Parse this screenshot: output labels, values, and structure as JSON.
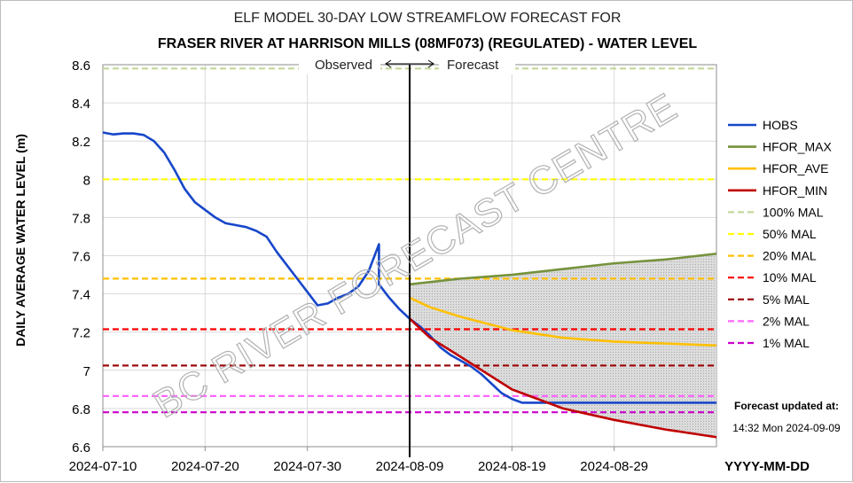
{
  "chart_data": {
    "type": "line",
    "title": "ELF MODEL 30-DAY LOW STREAMFLOW FORECAST FOR",
    "subtitle": "FRASER RIVER AT HARRISON MILLS (08MF073) (REGULATED)  - WATER LEVEL",
    "ylabel": "DAILY AVERAGE WATER LEVEL (m)",
    "xlabel": "YYYY-MM-DD",
    "ylim": [
      6.6,
      8.6
    ],
    "yticks": [
      "6.6",
      "6.8",
      "7",
      "7.2",
      "7.4",
      "7.6",
      "7.8",
      "8",
      "8.2",
      "8.4",
      "8.6"
    ],
    "xlim": [
      "2024-07-10",
      "2024-09-08"
    ],
    "xticks": [
      "2024-07-10",
      "2024-07-20",
      "2024-07-30",
      "2024-08-09",
      "2024-08-19",
      "2024-08-29"
    ],
    "grid": true,
    "legend_position": "right",
    "divider_date": "2024-08-09",
    "observed_label": "Observed",
    "forecast_label": "Forecast",
    "series": [
      {
        "name": "HOBS",
        "color": "#1747c9",
        "style": "solid",
        "x": [
          "2024-07-10",
          "2024-07-11",
          "2024-07-12",
          "2024-07-13",
          "2024-07-14",
          "2024-07-15",
          "2024-07-16",
          "2024-07-17",
          "2024-07-18",
          "2024-07-19",
          "2024-07-20",
          "2024-07-21",
          "2024-07-22",
          "2024-07-23",
          "2024-07-24",
          "2024-07-25",
          "2024-07-26",
          "2024-07-27",
          "2024-07-28",
          "2024-07-29",
          "2024-07-30",
          "2024-07-31",
          "2024-08-01",
          "2024-08-02",
          "2024-08-03",
          "2024-08-04",
          "2024-08-05",
          "2024-08-06",
          "2024-08-06",
          "2024-08-07",
          "2024-08-08",
          "2024-08-09",
          "2024-08-10",
          "2024-08-11",
          "2024-08-12",
          "2024-08-13",
          "2024-08-14",
          "2024-08-15",
          "2024-08-16",
          "2024-08-17",
          "2024-08-18",
          "2024-08-19",
          "2024-08-20",
          "2024-08-21",
          "2024-08-22",
          "2024-08-23",
          "2024-08-24",
          "2024-08-25",
          "2024-08-26",
          "2024-08-27",
          "2024-08-28",
          "2024-08-29",
          "2024-08-30",
          "2024-08-31",
          "2024-09-01",
          "2024-09-02",
          "2024-09-03",
          "2024-09-04",
          "2024-09-05",
          "2024-09-06",
          "2024-09-07",
          "2024-09-08"
        ],
        "values": [
          8.245,
          8.235,
          8.24,
          8.24,
          8.232,
          8.2,
          8.14,
          8.05,
          7.95,
          7.88,
          7.84,
          7.8,
          7.77,
          7.76,
          7.75,
          7.73,
          7.7,
          7.62,
          7.55,
          7.48,
          7.41,
          7.34,
          7.35,
          7.38,
          7.4,
          7.44,
          7.52,
          7.66,
          7.45,
          7.38,
          7.32,
          7.27,
          7.23,
          7.18,
          7.12,
          7.08,
          7.05,
          7.02,
          6.98,
          6.93,
          6.88,
          6.85,
          6.83,
          6.83,
          6.83,
          6.83,
          6.83,
          6.83,
          6.83,
          6.83,
          6.83,
          6.83,
          6.83,
          6.83,
          6.83,
          6.83,
          6.83,
          6.83,
          6.83,
          6.83,
          6.83,
          6.83
        ]
      },
      {
        "name": "HFOR_MAX",
        "color": "#76923c",
        "style": "solid",
        "x": [
          "2024-08-09",
          "2024-08-14",
          "2024-08-19",
          "2024-08-24",
          "2024-08-29",
          "2024-09-03",
          "2024-09-08"
        ],
        "values": [
          7.45,
          7.48,
          7.5,
          7.53,
          7.56,
          7.58,
          7.61
        ]
      },
      {
        "name": "HFOR_AVE",
        "color": "#ffc000",
        "style": "solid",
        "x": [
          "2024-08-09",
          "2024-08-11",
          "2024-08-14",
          "2024-08-19",
          "2024-08-24",
          "2024-08-29",
          "2024-09-03",
          "2024-09-08"
        ],
        "values": [
          7.38,
          7.33,
          7.28,
          7.21,
          7.17,
          7.15,
          7.14,
          7.13
        ]
      },
      {
        "name": "HFOR_MIN",
        "color": "#c00000",
        "style": "solid",
        "x": [
          "2024-08-09",
          "2024-08-11",
          "2024-08-14",
          "2024-08-19",
          "2024-08-24",
          "2024-08-29",
          "2024-09-03",
          "2024-09-08"
        ],
        "values": [
          7.27,
          7.17,
          7.07,
          6.9,
          6.8,
          6.74,
          6.69,
          6.65
        ]
      },
      {
        "name": "100% MAL",
        "color": "#c4d79b",
        "style": "dashed",
        "level": 8.58
      },
      {
        "name": "50% MAL",
        "color": "#ffff00",
        "style": "dashed",
        "level": 8.0
      },
      {
        "name": "20% MAL",
        "color": "#ffc000",
        "style": "dashed",
        "level": 7.48
      },
      {
        "name": "10% MAL",
        "color": "#ff0000",
        "style": "dashed",
        "level": 7.215
      },
      {
        "name": "5% MAL",
        "color": "#990000",
        "style": "dashed",
        "level": 7.025
      },
      {
        "name": "2% MAL",
        "color": "#ff66ff",
        "style": "dashed",
        "level": 6.865
      },
      {
        "name": "1% MAL",
        "color": "#cc00cc",
        "style": "dashed",
        "level": 6.78
      }
    ],
    "forecast_band_color": "#d9d9d9"
  },
  "watermark": "BC RIVER FORECAST CENTRE",
  "update_note": {
    "label": "Forecast updated at:",
    "time": "14:32 Mon 2024-09-09"
  }
}
